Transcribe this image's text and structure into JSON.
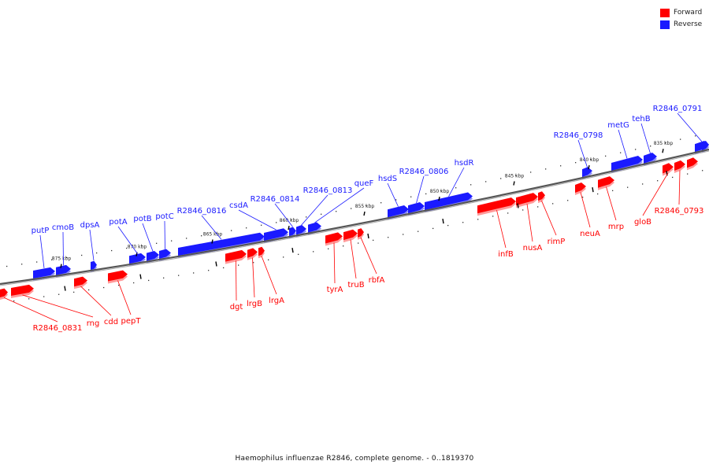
{
  "legend": {
    "forward_label": "Forward",
    "reverse_label": "Reverse",
    "forward_color": "#ff0000",
    "reverse_color": "#1a1aff"
  },
  "caption": "Haemophilus influenzae R2846, complete genome. - 0..1819370",
  "ticks": [
    "875 kbp",
    "870 kbp",
    "865 kbp",
    "860 kbp",
    "855 kbp",
    "850 kbp",
    "845 kbp",
    "840 kbp",
    "835 kbp"
  ],
  "genes": [
    {
      "name": "putP",
      "strand": "reverse"
    },
    {
      "name": "cmoB",
      "strand": "reverse"
    },
    {
      "name": "dpsA",
      "strand": "reverse"
    },
    {
      "name": "potA",
      "strand": "reverse"
    },
    {
      "name": "potB",
      "strand": "reverse"
    },
    {
      "name": "potC",
      "strand": "reverse"
    },
    {
      "name": "R2846_0816",
      "strand": "reverse"
    },
    {
      "name": "csdA",
      "strand": "reverse"
    },
    {
      "name": "R2846_0814",
      "strand": "reverse"
    },
    {
      "name": "R2846_0813",
      "strand": "reverse"
    },
    {
      "name": "queF",
      "strand": "reverse"
    },
    {
      "name": "hsdS",
      "strand": "reverse"
    },
    {
      "name": "R2846_0806",
      "strand": "reverse"
    },
    {
      "name": "hsdR",
      "strand": "reverse"
    },
    {
      "name": "R2846_0798",
      "strand": "reverse"
    },
    {
      "name": "metG",
      "strand": "reverse"
    },
    {
      "name": "tehB",
      "strand": "reverse"
    },
    {
      "name": "R2846_0791",
      "strand": "reverse"
    },
    {
      "name": "R2846_0831",
      "strand": "forward"
    },
    {
      "name": "rng",
      "strand": "forward"
    },
    {
      "name": "cdd",
      "strand": "forward"
    },
    {
      "name": "pepT",
      "strand": "forward"
    },
    {
      "name": "dgt",
      "strand": "forward"
    },
    {
      "name": "lrgB",
      "strand": "forward"
    },
    {
      "name": "lrgA",
      "strand": "forward"
    },
    {
      "name": "tyrA",
      "strand": "forward"
    },
    {
      "name": "truB",
      "strand": "forward"
    },
    {
      "name": "rbfA",
      "strand": "forward"
    },
    {
      "name": "infB",
      "strand": "forward"
    },
    {
      "name": "nusA",
      "strand": "forward"
    },
    {
      "name": "rimP",
      "strand": "forward"
    },
    {
      "name": "neuA",
      "strand": "forward"
    },
    {
      "name": "mrp",
      "strand": "forward"
    },
    {
      "name": "gloB",
      "strand": "forward"
    },
    {
      "name": "R2846_0793",
      "strand": "forward"
    }
  ]
}
